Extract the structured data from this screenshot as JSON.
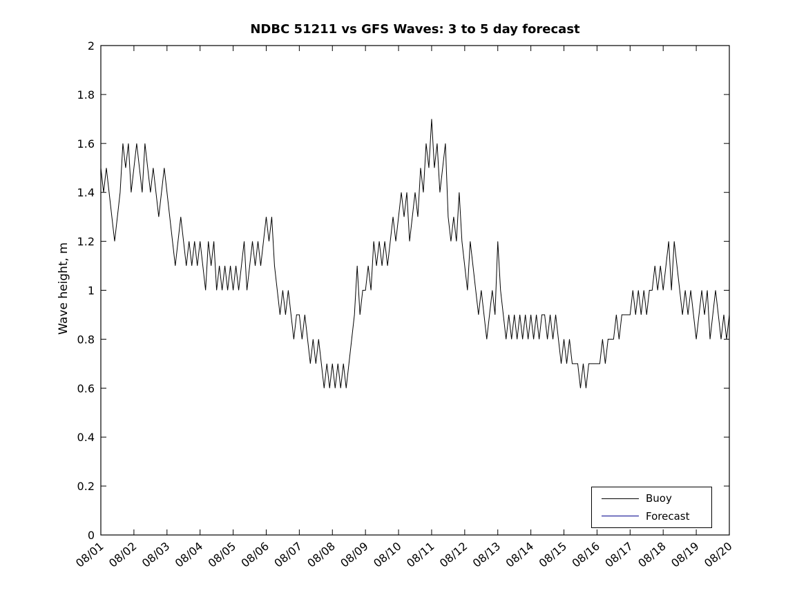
{
  "chart_data": {
    "type": "line",
    "title": "NDBC 51211 vs GFS Waves: 3 to 5 day forecast",
    "xlabel": "",
    "ylabel": "Wave height, m",
    "ylim": [
      0,
      2
    ],
    "yticks": [
      0,
      0.2,
      0.4,
      0.6,
      0.8,
      1,
      1.2,
      1.4,
      1.6,
      1.8,
      2
    ],
    "ytick_labels": [
      "0",
      "0.2",
      "0.4",
      "0.6",
      "0.8",
      "1",
      "1.2",
      "1.4",
      "1.6",
      "1.8",
      "2"
    ],
    "xtick_labels": [
      "08/01",
      "08/02",
      "08/03",
      "08/04",
      "08/05",
      "08/06",
      "08/07",
      "08/08",
      "08/09",
      "08/10",
      "08/11",
      "08/12",
      "08/13",
      "08/14",
      "08/15",
      "08/16",
      "08/17",
      "08/18",
      "08/19",
      "08/20"
    ],
    "x_unit": "days since 08/01",
    "grid": false,
    "legend": {
      "position": "southeast",
      "entries": [
        {
          "label": "Buoy",
          "color": "#000000"
        },
        {
          "label": "Forecast",
          "color": "#00008B"
        }
      ]
    },
    "series": [
      {
        "name": "Buoy",
        "color": "#000000",
        "points_per_day": 12,
        "values": [
          1.5,
          1.4,
          1.5,
          1.4,
          1.3,
          1.2,
          1.3,
          1.4,
          1.6,
          1.5,
          1.6,
          1.4,
          1.5,
          1.6,
          1.5,
          1.4,
          1.6,
          1.5,
          1.4,
          1.5,
          1.4,
          1.3,
          1.4,
          1.5,
          1.4,
          1.3,
          1.2,
          1.1,
          1.2,
          1.3,
          1.2,
          1.1,
          1.2,
          1.1,
          1.2,
          1.1,
          1.2,
          1.1,
          1.0,
          1.2,
          1.1,
          1.2,
          1.0,
          1.1,
          1.0,
          1.1,
          1.0,
          1.1,
          1.0,
          1.1,
          1.0,
          1.1,
          1.2,
          1.0,
          1.1,
          1.2,
          1.1,
          1.2,
          1.1,
          1.2,
          1.3,
          1.2,
          1.3,
          1.1,
          1.0,
          0.9,
          1.0,
          0.9,
          1.0,
          0.9,
          0.8,
          0.9,
          0.9,
          0.8,
          0.9,
          0.8,
          0.7,
          0.8,
          0.7,
          0.8,
          0.7,
          0.6,
          0.7,
          0.6,
          0.7,
          0.6,
          0.7,
          0.6,
          0.7,
          0.6,
          0.7,
          0.8,
          0.9,
          1.1,
          0.9,
          1.0,
          1.0,
          1.1,
          1.0,
          1.2,
          1.1,
          1.2,
          1.1,
          1.2,
          1.1,
          1.2,
          1.3,
          1.2,
          1.3,
          1.4,
          1.3,
          1.4,
          1.2,
          1.3,
          1.4,
          1.3,
          1.5,
          1.4,
          1.6,
          1.5,
          1.7,
          1.5,
          1.6,
          1.4,
          1.5,
          1.6,
          1.3,
          1.2,
          1.3,
          1.2,
          1.4,
          1.2,
          1.1,
          1.0,
          1.2,
          1.1,
          1.0,
          0.9,
          1.0,
          0.9,
          0.8,
          0.9,
          1.0,
          0.9,
          1.2,
          1.0,
          0.9,
          0.8,
          0.9,
          0.8,
          0.9,
          0.8,
          0.9,
          0.8,
          0.9,
          0.8,
          0.9,
          0.8,
          0.9,
          0.8,
          0.9,
          0.9,
          0.8,
          0.9,
          0.8,
          0.9,
          0.8,
          0.7,
          0.8,
          0.7,
          0.8,
          0.7,
          0.7,
          0.7,
          0.6,
          0.7,
          0.6,
          0.7,
          0.7,
          0.7,
          0.7,
          0.7,
          0.8,
          0.7,
          0.8,
          0.8,
          0.8,
          0.9,
          0.8,
          0.9,
          0.9,
          0.9,
          0.9,
          1.0,
          0.9,
          1.0,
          0.9,
          1.0,
          0.9,
          1.0,
          1.0,
          1.1,
          1.0,
          1.1,
          1.0,
          1.1,
          1.2,
          1.0,
          1.2,
          1.1,
          1.0,
          0.9,
          1.0,
          0.9,
          1.0,
          0.9,
          0.8,
          0.9,
          1.0,
          0.9,
          1.0,
          0.8,
          0.9,
          1.0,
          0.9,
          0.8,
          0.9,
          0.8,
          0.9
        ]
      },
      {
        "name": "Forecast",
        "color": "#00008B",
        "points_per_day": 12,
        "values": []
      }
    ]
  }
}
